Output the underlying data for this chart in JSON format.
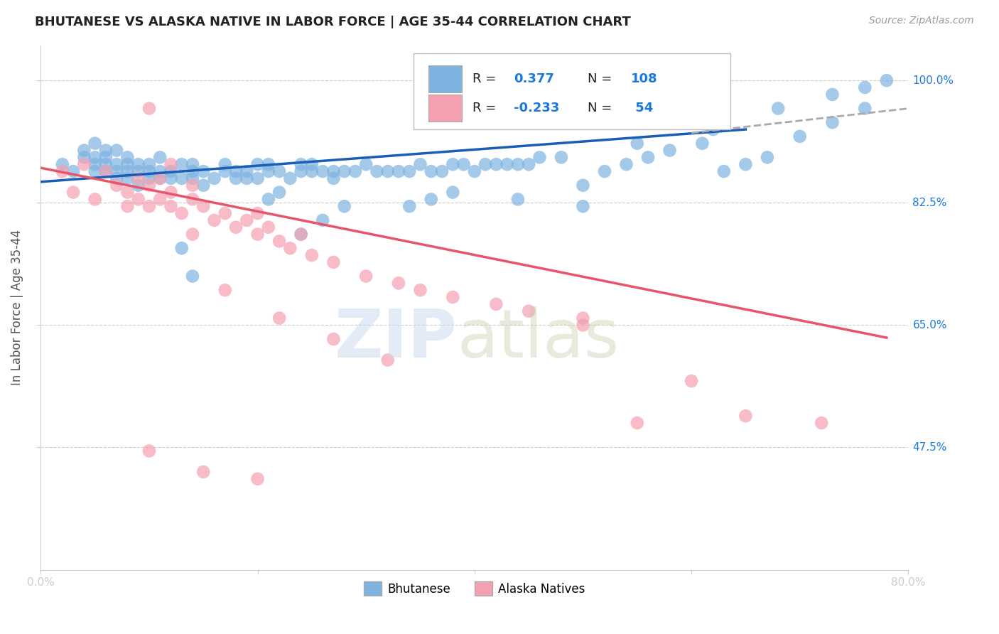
{
  "title": "BHUTANESE VS ALASKA NATIVE IN LABOR FORCE | AGE 35-44 CORRELATION CHART",
  "source": "Source: ZipAtlas.com",
  "ylabel": "In Labor Force | Age 35-44",
  "xlim": [
    0.0,
    0.8
  ],
  "ylim": [
    0.3,
    1.05
  ],
  "y_tick_labels": [
    "47.5%",
    "65.0%",
    "82.5%",
    "100.0%"
  ],
  "y_ticks": [
    0.475,
    0.65,
    0.825,
    1.0
  ],
  "blue_R": 0.377,
  "blue_N": 108,
  "pink_R": -0.233,
  "pink_N": 54,
  "blue_color": "#7eb3e0",
  "pink_color": "#f4a0b0",
  "blue_line_color": "#1a5eb8",
  "pink_line_color": "#e8556a",
  "dashed_line_color": "#aaaaaa",
  "blue_scatter_x": [
    0.02,
    0.03,
    0.04,
    0.04,
    0.05,
    0.05,
    0.05,
    0.05,
    0.06,
    0.06,
    0.06,
    0.06,
    0.07,
    0.07,
    0.07,
    0.07,
    0.08,
    0.08,
    0.08,
    0.08,
    0.09,
    0.09,
    0.09,
    0.1,
    0.1,
    0.1,
    0.11,
    0.11,
    0.11,
    0.12,
    0.12,
    0.13,
    0.13,
    0.14,
    0.14,
    0.14,
    0.15,
    0.15,
    0.16,
    0.17,
    0.17,
    0.18,
    0.18,
    0.19,
    0.19,
    0.2,
    0.2,
    0.21,
    0.21,
    0.22,
    0.23,
    0.24,
    0.24,
    0.25,
    0.25,
    0.26,
    0.27,
    0.27,
    0.28,
    0.29,
    0.3,
    0.31,
    0.32,
    0.33,
    0.34,
    0.35,
    0.36,
    0.37,
    0.38,
    0.39,
    0.4,
    0.41,
    0.42,
    0.43,
    0.44,
    0.45,
    0.46,
    0.48,
    0.5,
    0.52,
    0.54,
    0.56,
    0.58,
    0.61,
    0.63,
    0.65,
    0.67,
    0.7,
    0.73,
    0.76,
    0.13,
    0.21,
    0.22,
    0.26,
    0.28,
    0.34,
    0.36,
    0.44,
    0.5,
    0.55,
    0.62,
    0.68,
    0.73,
    0.76,
    0.78,
    0.14,
    0.24,
    0.38
  ],
  "blue_scatter_y": [
    0.88,
    0.87,
    0.89,
    0.9,
    0.87,
    0.88,
    0.89,
    0.91,
    0.87,
    0.88,
    0.89,
    0.9,
    0.86,
    0.87,
    0.88,
    0.9,
    0.86,
    0.87,
    0.88,
    0.89,
    0.85,
    0.87,
    0.88,
    0.86,
    0.87,
    0.88,
    0.86,
    0.87,
    0.89,
    0.86,
    0.87,
    0.86,
    0.88,
    0.86,
    0.87,
    0.88,
    0.85,
    0.87,
    0.86,
    0.87,
    0.88,
    0.86,
    0.87,
    0.86,
    0.87,
    0.86,
    0.88,
    0.87,
    0.88,
    0.87,
    0.86,
    0.87,
    0.88,
    0.87,
    0.88,
    0.87,
    0.86,
    0.87,
    0.87,
    0.87,
    0.88,
    0.87,
    0.87,
    0.87,
    0.87,
    0.88,
    0.87,
    0.87,
    0.88,
    0.88,
    0.87,
    0.88,
    0.88,
    0.88,
    0.88,
    0.88,
    0.89,
    0.89,
    0.82,
    0.87,
    0.88,
    0.89,
    0.9,
    0.91,
    0.87,
    0.88,
    0.89,
    0.92,
    0.94,
    0.96,
    0.76,
    0.83,
    0.84,
    0.8,
    0.82,
    0.82,
    0.83,
    0.83,
    0.85,
    0.91,
    0.93,
    0.96,
    0.98,
    0.99,
    1.0,
    0.72,
    0.78,
    0.84
  ],
  "pink_scatter_x": [
    0.02,
    0.03,
    0.04,
    0.05,
    0.06,
    0.07,
    0.08,
    0.08,
    0.09,
    0.09,
    0.1,
    0.1,
    0.11,
    0.11,
    0.12,
    0.12,
    0.13,
    0.14,
    0.14,
    0.15,
    0.16,
    0.17,
    0.18,
    0.19,
    0.2,
    0.2,
    0.21,
    0.22,
    0.23,
    0.24,
    0.25,
    0.27,
    0.3,
    0.33,
    0.35,
    0.38,
    0.42,
    0.45,
    0.5,
    0.5,
    0.55,
    0.6,
    0.65,
    0.72,
    0.1,
    0.15,
    0.2,
    0.1,
    0.12,
    0.14,
    0.17,
    0.22,
    0.27,
    0.32
  ],
  "pink_scatter_y": [
    0.87,
    0.84,
    0.88,
    0.83,
    0.87,
    0.85,
    0.82,
    0.84,
    0.83,
    0.86,
    0.82,
    0.85,
    0.83,
    0.86,
    0.82,
    0.84,
    0.81,
    0.83,
    0.85,
    0.82,
    0.8,
    0.81,
    0.79,
    0.8,
    0.78,
    0.81,
    0.79,
    0.77,
    0.76,
    0.78,
    0.75,
    0.74,
    0.72,
    0.71,
    0.7,
    0.69,
    0.68,
    0.67,
    0.66,
    0.65,
    0.51,
    0.57,
    0.52,
    0.51,
    0.47,
    0.44,
    0.43,
    0.96,
    0.88,
    0.78,
    0.7,
    0.66,
    0.63,
    0.6
  ],
  "blue_line_x": [
    0.0,
    0.65
  ],
  "blue_line_y": [
    0.855,
    0.93
  ],
  "pink_line_x": [
    0.0,
    0.78
  ],
  "pink_line_y": [
    0.875,
    0.632
  ],
  "dashed_line_x": [
    0.6,
    0.8
  ],
  "dashed_line_y": [
    0.925,
    0.96
  ]
}
